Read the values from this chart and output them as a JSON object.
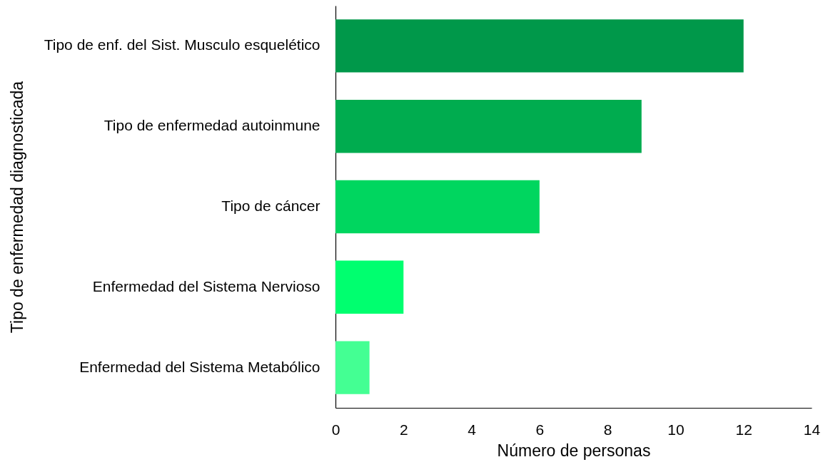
{
  "chart_data": {
    "type": "bar",
    "orientation": "horizontal",
    "xlabel": "Número de personas",
    "ylabel": "Tipo de enfermedad diagnosticada",
    "categories": [
      "Tipo de enf. del Sist. Musculo esquelético",
      "Tipo de enfermedad autoinmune",
      "Tipo de cáncer",
      "Enfermedad del Sistema Nervioso",
      "Enfermedad del Sistema Metabólico"
    ],
    "values": [
      12,
      9,
      6,
      2,
      1
    ],
    "colors": [
      "#00984a",
      "#00ac4f",
      "#00d65f",
      "#00ff6f",
      "#44ff93"
    ],
    "xlim": [
      0,
      14
    ],
    "xticks": [
      0,
      2,
      4,
      6,
      8,
      10,
      12,
      14
    ]
  }
}
